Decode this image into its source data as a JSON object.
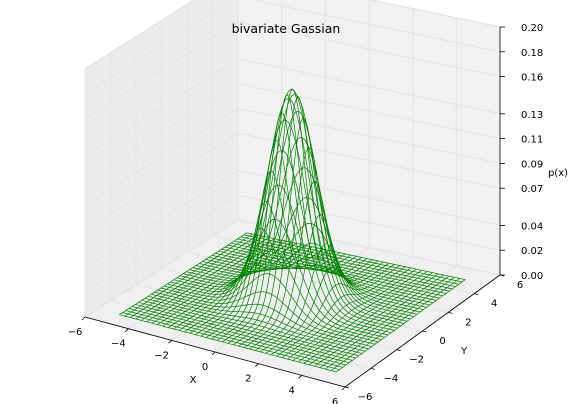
{
  "chart_data": {
    "type": "surface_wireframe",
    "title": "bivariate Gassian",
    "xlabel": "X",
    "ylabel": "Y",
    "zlabel": "p(x)",
    "xlim": [
      -6,
      6
    ],
    "ylim": [
      -6,
      6
    ],
    "zlim": [
      0.0,
      0.2
    ],
    "x_ticks": [
      -6,
      -4,
      -2,
      0,
      2,
      4,
      6
    ],
    "y_ticks": [
      -6,
      -4,
      -2,
      0,
      2,
      4,
      6
    ],
    "z_ticks": [
      "0.00",
      "0.02",
      "0.04",
      "0.07",
      "0.09",
      "0.11",
      "0.13",
      "0.16",
      "0.18",
      "0.20"
    ],
    "x_tick_labels": [
      "−6",
      "−4",
      "−2",
      "0",
      "2",
      "4",
      "6"
    ],
    "y_tick_labels": [
      "−6",
      "−4",
      "−2",
      "0",
      "2",
      "4",
      "6"
    ],
    "grid": true,
    "surface": {
      "function": "bivariate normal density",
      "mean": [
        0,
        0
      ],
      "peak_value": 0.17,
      "x_range": [
        -5,
        5
      ],
      "y_range": [
        -5,
        5
      ]
    },
    "color": "#008000",
    "pane_color": "#f2f2f2"
  }
}
